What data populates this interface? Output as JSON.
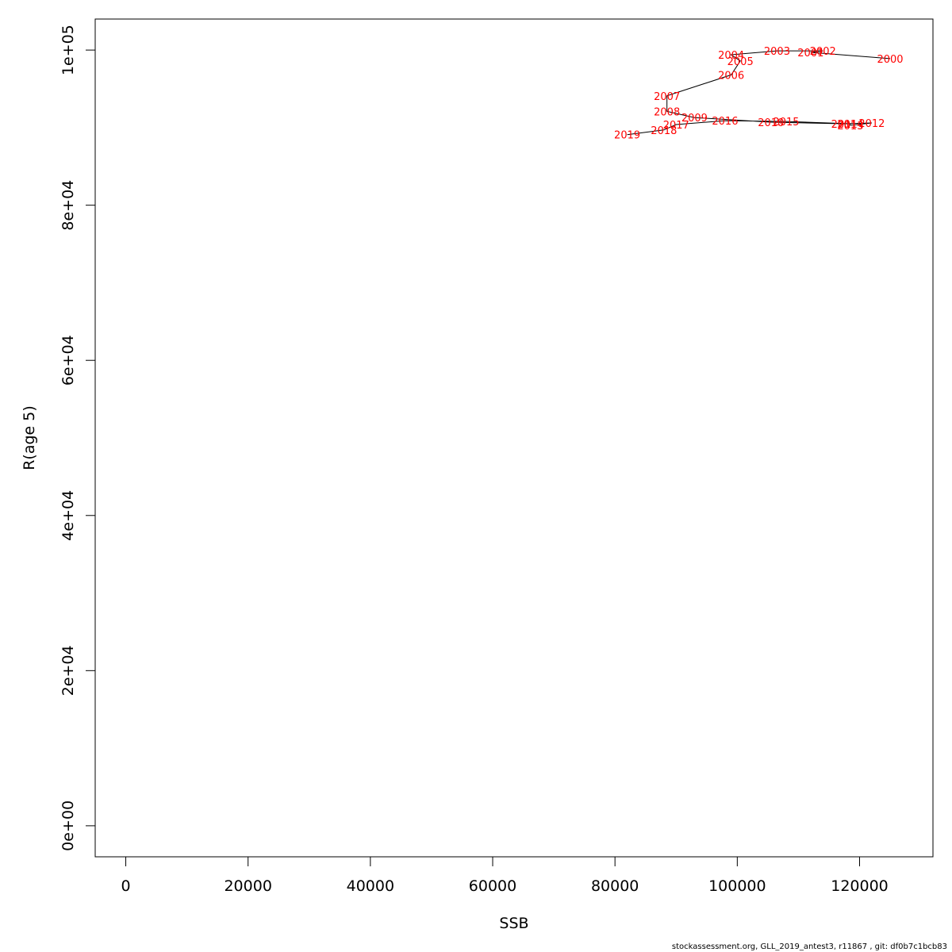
{
  "chart_data": {
    "type": "scatter",
    "xlabel": "SSB",
    "ylabel": "R(age 5)",
    "xlim": [
      -5000,
      132000
    ],
    "ylim": [
      -4000,
      104000
    ],
    "x_ticks": [
      0,
      20000,
      40000,
      60000,
      80000,
      100000,
      120000
    ],
    "x_tick_labels": [
      "0",
      "20000",
      "40000",
      "60000",
      "80000",
      "100000",
      "120000"
    ],
    "y_ticks": [
      0,
      20000,
      40000,
      60000,
      80000,
      100000
    ],
    "y_tick_labels": [
      "0e+00",
      "2e+04",
      "4e+04",
      "6e+04",
      "8e+04",
      "1e+05"
    ],
    "point_label_color": "#ff0000",
    "line_color": "#000000",
    "points": [
      {
        "label": "2000",
        "x": 125000,
        "y": 98900
      },
      {
        "label": "2001",
        "x": 112000,
        "y": 99700
      },
      {
        "label": "2002",
        "x": 114000,
        "y": 99900
      },
      {
        "label": "2003",
        "x": 106500,
        "y": 99900
      },
      {
        "label": "2004",
        "x": 99000,
        "y": 99400
      },
      {
        "label": "2005",
        "x": 100500,
        "y": 98600
      },
      {
        "label": "2006",
        "x": 99000,
        "y": 96800
      },
      {
        "label": "2007",
        "x": 88500,
        "y": 94100
      },
      {
        "label": "2008",
        "x": 88500,
        "y": 92100
      },
      {
        "label": "2009",
        "x": 93000,
        "y": 91300
      },
      {
        "label": "2010",
        "x": 105500,
        "y": 90700
      },
      {
        "label": "2011",
        "x": 117500,
        "y": 90500
      },
      {
        "label": "2012",
        "x": 122000,
        "y": 90600
      },
      {
        "label": "2013",
        "x": 118500,
        "y": 90300
      },
      {
        "label": "2014",
        "x": 118500,
        "y": 90500
      },
      {
        "label": "2015",
        "x": 108000,
        "y": 90800
      },
      {
        "label": "2016",
        "x": 98000,
        "y": 90900
      },
      {
        "label": "2017",
        "x": 90000,
        "y": 90400
      },
      {
        "label": "2018",
        "x": 88000,
        "y": 89700
      },
      {
        "label": "2019",
        "x": 82000,
        "y": 89100
      }
    ]
  },
  "footer": "stockassessment.org, GLL_2019_antest3, r11867 , git: df0b7c1bcb83"
}
